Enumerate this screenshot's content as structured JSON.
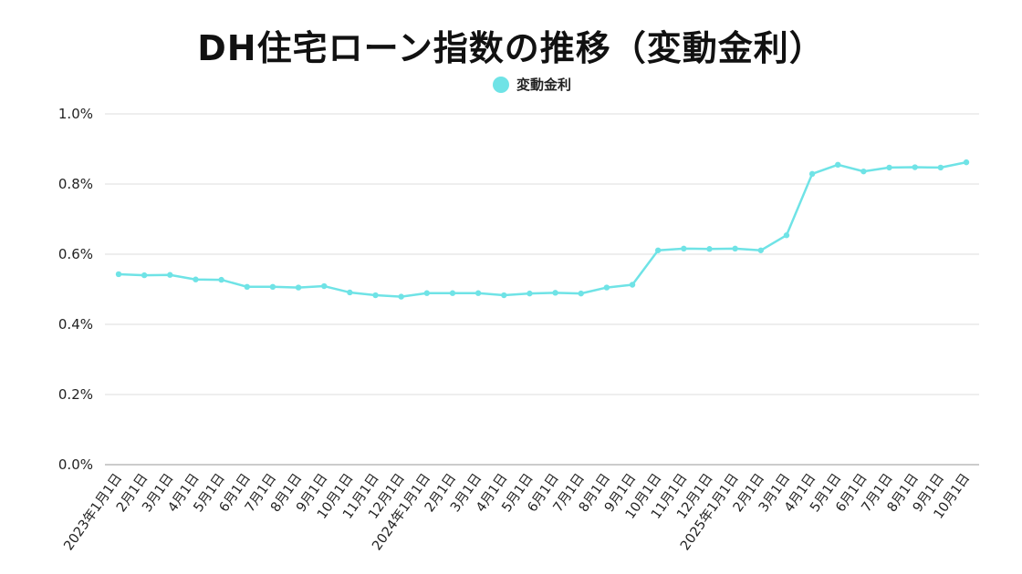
{
  "chart_data": {
    "type": "line",
    "title": "DH住宅ローン指数の推移（変動金利）",
    "xlabel": "",
    "ylabel": "",
    "ylim": [
      0.0,
      1.0
    ],
    "yticks": [
      "0.0%",
      "0.2%",
      "0.4%",
      "0.6%",
      "0.8%",
      "1.0%"
    ],
    "ytick_values": [
      0.0,
      0.2,
      0.4,
      0.6,
      0.8,
      1.0
    ],
    "grid": true,
    "legend_position": "top-center",
    "categories": [
      "2023年1月1日",
      "2月1日",
      "3月1日",
      "4月1日",
      "5月1日",
      "6月1日",
      "7月1日",
      "8月1日",
      "9月1日",
      "10月1日",
      "11月1日",
      "12月1日",
      "2024年1月1日",
      "2月1日",
      "3月1日",
      "4月1日",
      "5月1日",
      "6月1日",
      "7月1日",
      "8月1日",
      "9月1日",
      "10月1日",
      "11月1日",
      "12月1日",
      "2025年1月1日",
      "2月1日",
      "3月1日",
      "4月1日",
      "5月1日",
      "6月1日",
      "7月1日",
      "8月1日",
      "9月1日",
      "10月1日"
    ],
    "series": [
      {
        "name": "変動金利",
        "color": "#6fe3e6",
        "values": [
          0.543,
          0.54,
          0.541,
          0.528,
          0.527,
          0.507,
          0.507,
          0.505,
          0.509,
          0.491,
          0.483,
          0.479,
          0.489,
          0.489,
          0.489,
          0.483,
          0.488,
          0.49,
          0.488,
          0.505,
          0.513,
          0.611,
          0.616,
          0.615,
          0.616,
          0.611,
          0.654,
          0.829,
          0.855,
          0.836,
          0.847,
          0.848,
          0.847,
          0.862
        ]
      }
    ]
  }
}
